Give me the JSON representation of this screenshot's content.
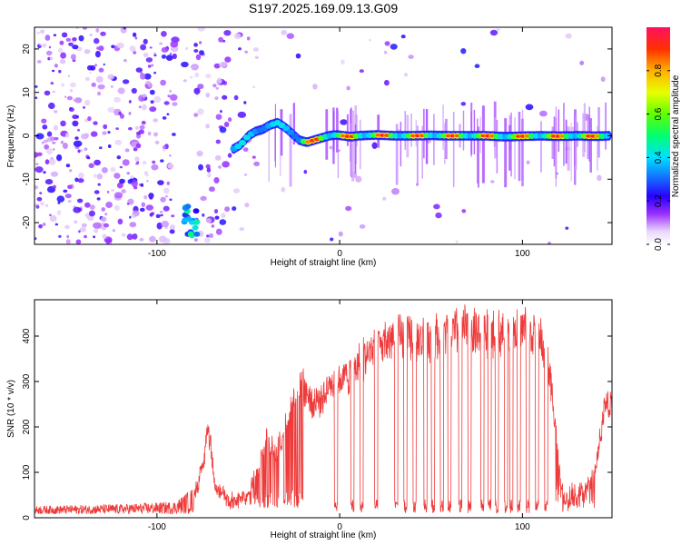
{
  "chart_data": [
    {
      "type": "heatmap",
      "title": "S197.2025.169.09.13.G09",
      "xlabel": "Height of straight line (km)",
      "ylabel": "Frequency (Hz)",
      "xlim": [
        -167,
        149
      ],
      "ylim": [
        -25,
        25
      ],
      "x_ticks": [
        -100,
        0,
        100
      ],
      "x_tick_labels": [
        "-100",
        "0",
        "100"
      ],
      "y_ticks": [
        -20,
        -10,
        0,
        10,
        20
      ],
      "y_tick_labels": [
        "-20",
        "-10",
        "0",
        "10",
        "20"
      ],
      "grid": false,
      "colorbar": {
        "label": "Normalized spectral amplitude",
        "range": [
          0,
          1
        ],
        "ticks": [
          0.0,
          0.2,
          0.4,
          0.6,
          0.8
        ],
        "tick_labels": [
          "0.0",
          "0.2",
          "0.4",
          "0.6",
          "0.8"
        ]
      },
      "ridge": {
        "description_points_x": [
          -58,
          -54,
          -50,
          -46,
          -42,
          -38,
          -34,
          -30,
          -26,
          -22,
          -18,
          -14,
          -10,
          -6,
          -2,
          2,
          6,
          10,
          20,
          30,
          40,
          50,
          60,
          70,
          80,
          90,
          100,
          110,
          120,
          130,
          140,
          148
        ],
        "description_points_y": [
          -3,
          -2,
          0,
          1,
          1.5,
          2.5,
          3,
          2,
          0.5,
          -1,
          -1.5,
          -1,
          -0.5,
          0,
          0.2,
          0,
          -0.2,
          0,
          0.2,
          0,
          0,
          0.1,
          0,
          0,
          0,
          -0.2,
          -0.1,
          0,
          -0.1,
          0,
          -0.1,
          0
        ],
        "peak_amplitude": 0.95
      },
      "low_cluster": {
        "x": [
          -85,
          -78
        ],
        "y": [
          -23,
          -16
        ],
        "amplitude": 0.45
      }
    },
    {
      "type": "line",
      "xlabel": "Height of straight line (km)",
      "ylabel": "SNR (10 * v/v)",
      "xlim": [
        -167,
        149
      ],
      "ylim": [
        0,
        480
      ],
      "x_ticks": [
        -100,
        0,
        100
      ],
      "x_tick_labels": [
        "-100",
        "0",
        "100"
      ],
      "y_ticks": [
        0,
        100,
        200,
        300,
        400
      ],
      "y_tick_labels": [
        "0",
        "100",
        "200",
        "300",
        "400"
      ],
      "grid": false,
      "color": "#ee3a3a",
      "envelope": {
        "x": [
          -167,
          -120,
          -90,
          -80,
          -75,
          -72,
          -68,
          -60,
          -50,
          -45,
          -40,
          -35,
          -30,
          -25,
          -20,
          -15,
          -10,
          -5,
          0,
          5,
          10,
          20,
          30,
          40,
          50,
          60,
          70,
          80,
          90,
          100,
          110,
          115,
          118,
          122,
          130,
          140,
          145,
          149
        ],
        "y": [
          18,
          22,
          28,
          60,
          130,
          230,
          90,
          50,
          70,
          130,
          210,
          160,
          230,
          300,
          330,
          280,
          300,
          330,
          340,
          350,
          380,
          420,
          440,
          440,
          440,
          450,
          455,
          450,
          450,
          460,
          440,
          350,
          240,
          40,
          50,
          120,
          280,
          290
        ]
      },
      "dropouts_x": [
        -2,
        7,
        12,
        20,
        31,
        36,
        41,
        47,
        51,
        56,
        60,
        66,
        71,
        78,
        82,
        86,
        91,
        94,
        98,
        103,
        108,
        113
      ]
    }
  ]
}
